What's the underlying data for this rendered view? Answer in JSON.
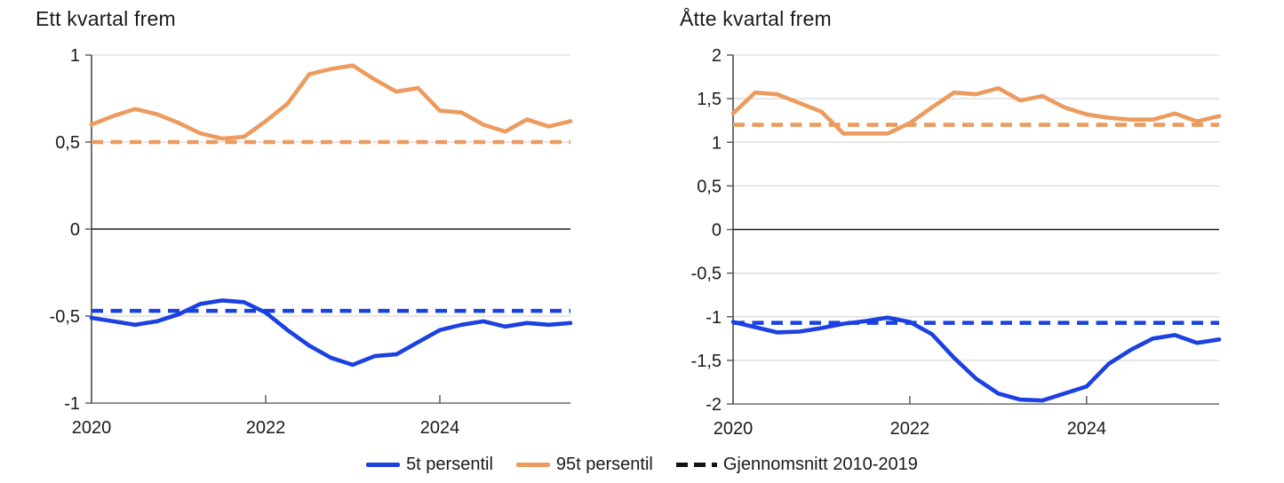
{
  "legend": {
    "items": [
      {
        "label": "5t persentil",
        "color": "#1B41E0",
        "style": "solid"
      },
      {
        "label": "95t persentil",
        "color": "#EC9B5F",
        "style": "solid"
      },
      {
        "label": "Gjennomsnitt 2010-2019",
        "color": "#141414",
        "style": "dashed"
      }
    ]
  },
  "chart_data": [
    {
      "type": "line",
      "title": "Ett kvartal frem",
      "x_freq": "quarterly",
      "x_start": "2020Q1",
      "x_end": "2025Q3",
      "n_points": 23,
      "x_tick_labels": [
        "2020",
        "2022",
        "2024"
      ],
      "x_tick_indices": [
        0,
        8,
        16
      ],
      "ylim": [
        -1,
        1
      ],
      "grid": true,
      "y_ticks": [
        {
          "v": 1,
          "label": "1"
        },
        {
          "v": 0.5,
          "label": "0,5"
        },
        {
          "v": 0,
          "label": "0"
        },
        {
          "v": -0.5,
          "label": "-0,5"
        },
        {
          "v": -1,
          "label": "-1"
        }
      ],
      "series": [
        {
          "name": "Gjennomsnitt 2010-2019 (95t persentil)",
          "type": "hline",
          "style": "dashed",
          "color": "#EC9B5F",
          "value": 0.5
        },
        {
          "name": "Gjennomsnitt 2010-2019 (5t persentil)",
          "type": "hline",
          "style": "dashed",
          "color": "#1B41E0",
          "value": -0.47
        },
        {
          "name": "95t persentil",
          "type": "line",
          "style": "solid",
          "color": "#EC9B5F",
          "values": [
            0.6,
            0.65,
            0.69,
            0.66,
            0.61,
            0.55,
            0.52,
            0.53,
            0.62,
            0.72,
            0.89,
            0.92,
            0.94,
            0.86,
            0.79,
            0.81,
            0.68,
            0.67,
            0.6,
            0.56,
            0.63,
            0.59,
            0.62
          ]
        },
        {
          "name": "5t persentil",
          "type": "line",
          "style": "solid",
          "color": "#1B41E0",
          "values": [
            -0.51,
            -0.53,
            -0.55,
            -0.53,
            -0.49,
            -0.43,
            -0.41,
            -0.42,
            -0.48,
            -0.58,
            -0.67,
            -0.74,
            -0.78,
            -0.73,
            -0.72,
            -0.65,
            -0.58,
            -0.55,
            -0.53,
            -0.56,
            -0.54,
            -0.55,
            -0.54
          ]
        }
      ]
    },
    {
      "type": "line",
      "title": "Åtte kvartal frem",
      "x_freq": "quarterly",
      "x_start": "2020Q1",
      "x_end": "2025Q3",
      "n_points": 23,
      "x_tick_labels": [
        "2020",
        "2022",
        "2024"
      ],
      "x_tick_indices": [
        0,
        8,
        16
      ],
      "ylim": [
        -2,
        2
      ],
      "grid": true,
      "y_ticks": [
        {
          "v": 2,
          "label": "2"
        },
        {
          "v": 1.5,
          "label": "1,5"
        },
        {
          "v": 1,
          "label": "1"
        },
        {
          "v": 0.5,
          "label": "0,5"
        },
        {
          "v": 0,
          "label": "0"
        },
        {
          "v": -0.5,
          "label": "-0,5"
        },
        {
          "v": -1,
          "label": "-1"
        },
        {
          "v": -1.5,
          "label": "-1,5"
        },
        {
          "v": -2,
          "label": "-2"
        }
      ],
      "series": [
        {
          "name": "Gjennomsnitt 2010-2019 (95t persentil)",
          "type": "hline",
          "style": "dashed",
          "color": "#EC9B5F",
          "value": 1.2
        },
        {
          "name": "Gjennomsnitt 2010-2019 (5t persentil)",
          "type": "hline",
          "style": "dashed",
          "color": "#1B41E0",
          "value": -1.07
        },
        {
          "name": "95t persentil",
          "type": "line",
          "style": "solid",
          "color": "#EC9B5F",
          "values": [
            1.33,
            1.57,
            1.55,
            1.45,
            1.35,
            1.1,
            1.1,
            1.1,
            1.22,
            1.4,
            1.57,
            1.55,
            1.62,
            1.48,
            1.53,
            1.4,
            1.32,
            1.28,
            1.26,
            1.26,
            1.33,
            1.24,
            1.3
          ]
        },
        {
          "name": "5t persentil",
          "type": "line",
          "style": "solid",
          "color": "#1B41E0",
          "values": [
            -1.06,
            -1.12,
            -1.18,
            -1.17,
            -1.13,
            -1.08,
            -1.05,
            -1.01,
            -1.06,
            -1.2,
            -1.47,
            -1.71,
            -1.88,
            -1.95,
            -1.96,
            -1.88,
            -1.8,
            -1.54,
            -1.38,
            -1.25,
            -1.21,
            -1.3,
            -1.26
          ]
        }
      ]
    }
  ]
}
